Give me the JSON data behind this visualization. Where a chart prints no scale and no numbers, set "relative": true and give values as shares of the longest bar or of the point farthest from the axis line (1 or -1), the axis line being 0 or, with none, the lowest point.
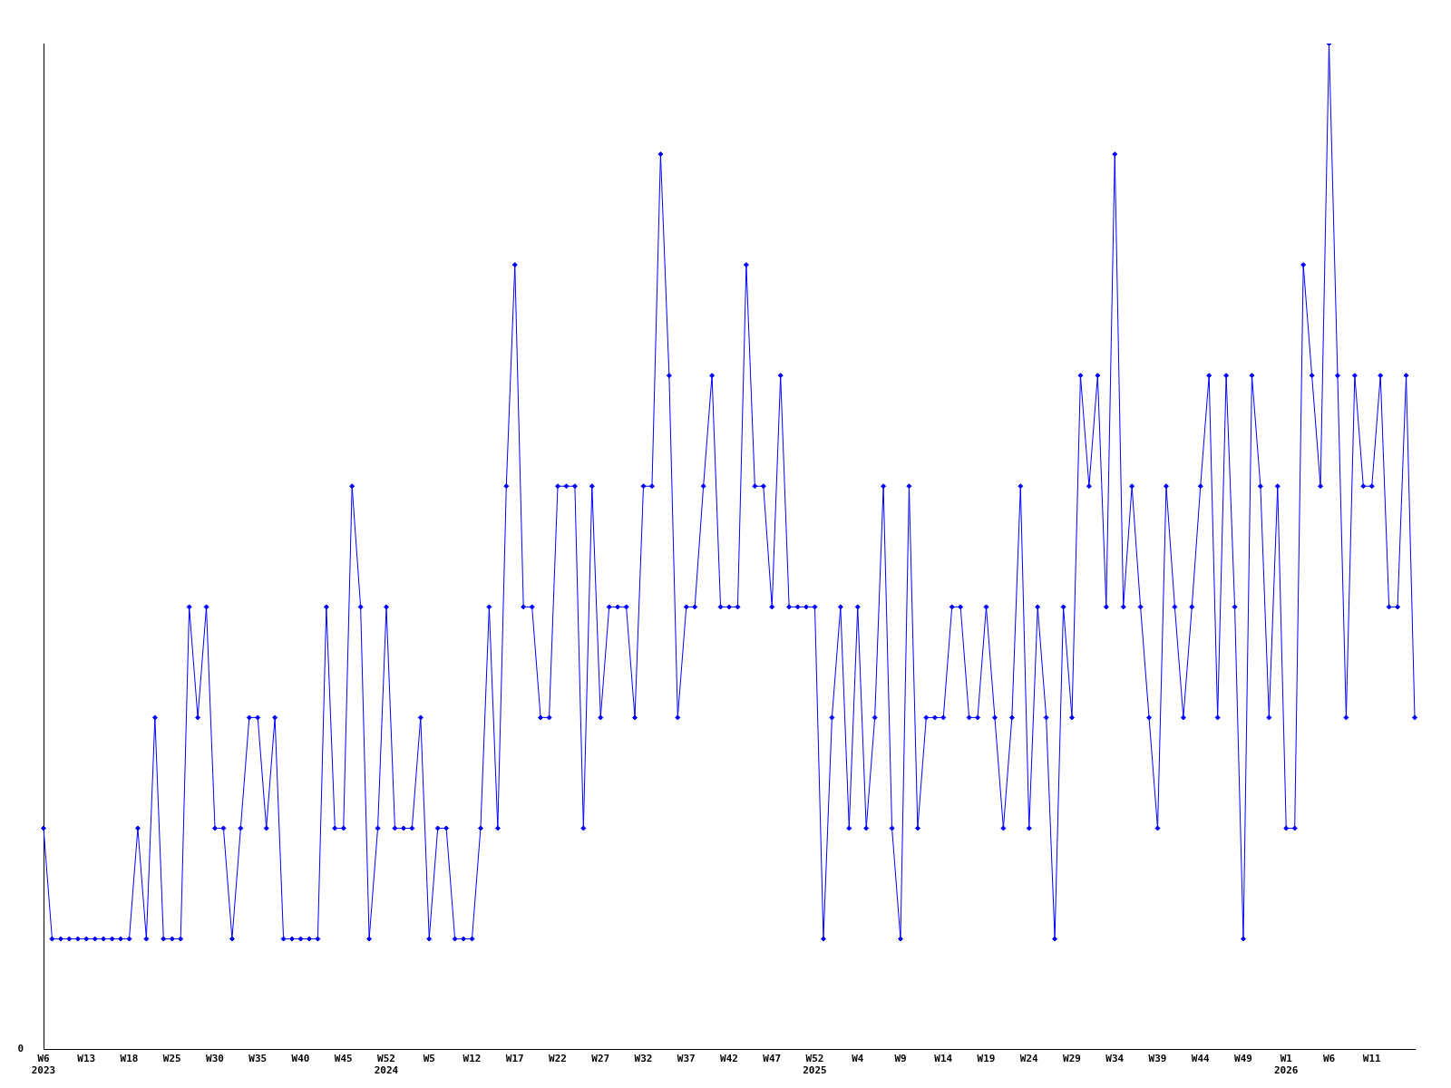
{
  "chart_data": {
    "type": "line",
    "relative": true,
    "marker": "diamond",
    "line_style": "solid",
    "grid": false,
    "legend": false,
    "annotations": [
      "0"
    ],
    "categories": [
      "W6\n2023",
      null,
      null,
      null,
      null,
      "W13",
      null,
      null,
      null,
      null,
      "W18",
      null,
      null,
      null,
      null,
      "W25",
      null,
      null,
      null,
      null,
      "W30",
      null,
      null,
      null,
      null,
      "W35",
      null,
      null,
      null,
      null,
      "W40",
      null,
      null,
      null,
      null,
      "W45",
      null,
      null,
      null,
      null,
      "W52\n2024",
      null,
      null,
      null,
      null,
      "W5",
      null,
      null,
      null,
      null,
      "W12",
      null,
      null,
      null,
      null,
      "W17",
      null,
      null,
      null,
      null,
      "W22",
      null,
      null,
      null,
      null,
      "W27",
      null,
      null,
      null,
      null,
      "W32",
      null,
      null,
      null,
      null,
      "W37",
      null,
      null,
      null,
      null,
      "W42",
      null,
      null,
      null,
      null,
      "W47",
      null,
      null,
      null,
      null,
      "W52\n2025",
      null,
      null,
      null,
      null,
      "W4",
      null,
      null,
      null,
      null,
      "W9",
      null,
      null,
      null,
      null,
      "W14",
      null,
      null,
      null,
      null,
      "W19",
      null,
      null,
      null,
      null,
      "W24",
      null,
      null,
      null,
      null,
      "W29",
      null,
      null,
      null,
      null,
      "W34",
      null,
      null,
      null,
      null,
      "W39",
      null,
      null,
      null,
      null,
      "W44",
      null,
      null,
      null,
      null,
      "W49",
      null,
      null,
      null,
      null,
      "W1\n2026",
      null,
      null,
      null,
      null,
      "W6",
      null,
      null,
      null,
      null,
      "W11",
      null,
      null,
      null,
      null,
      null
    ],
    "series": [
      {
        "color": "#0000ff",
        "values": [
          0.22,
          0.11,
          0.11,
          0.11,
          0.11,
          0.11,
          0.11,
          0.11,
          0.11,
          0.11,
          0.11,
          0.22,
          0.11,
          0.33,
          0.11,
          0.11,
          0.11,
          0.44,
          0.33,
          0.44,
          0.22,
          0.22,
          0.11,
          0.22,
          0.33,
          0.33,
          0.22,
          0.33,
          0.11,
          0.11,
          0.11,
          0.11,
          0.11,
          0.44,
          0.22,
          0.22,
          0.56,
          0.44,
          0.11,
          0.22,
          0.44,
          0.22,
          0.22,
          0.22,
          0.33,
          0.11,
          0.22,
          0.22,
          0.11,
          0.11,
          0.11,
          0.22,
          0.44,
          0.22,
          0.56,
          0.78,
          0.44,
          0.44,
          0.33,
          0.33,
          0.56,
          0.56,
          0.56,
          0.22,
          0.56,
          0.33,
          0.44,
          0.44,
          0.44,
          0.33,
          0.56,
          0.56,
          0.89,
          0.67,
          0.33,
          0.44,
          0.44,
          0.56,
          0.67,
          0.44,
          0.44,
          0.44,
          0.78,
          0.56,
          0.56,
          0.44,
          0.67,
          0.44,
          0.44,
          0.44,
          0.44,
          0.11,
          0.33,
          0.44,
          0.22,
          0.44,
          0.22,
          0.33,
          0.56,
          0.22,
          0.11,
          0.56,
          0.22,
          0.33,
          0.33,
          0.33,
          0.44,
          0.44,
          0.33,
          0.33,
          0.44,
          0.33,
          0.22,
          0.33,
          0.56,
          0.22,
          0.44,
          0.33,
          0.11,
          0.44,
          0.33,
          0.67,
          0.56,
          0.67,
          0.44,
          0.89,
          0.44,
          0.56,
          0.44,
          0.33,
          0.22,
          0.56,
          0.44,
          0.33,
          0.44,
          0.56,
          0.67,
          0.33,
          0.67,
          0.44,
          0.11,
          0.67,
          0.56,
          0.33,
          0.56,
          0.22,
          0.22,
          0.78,
          0.67,
          0.56,
          1,
          0.67,
          0.33,
          0.67,
          0.56,
          0.56,
          0.67,
          0.44,
          0.44,
          0.67,
          0.33
        ]
      }
    ]
  }
}
